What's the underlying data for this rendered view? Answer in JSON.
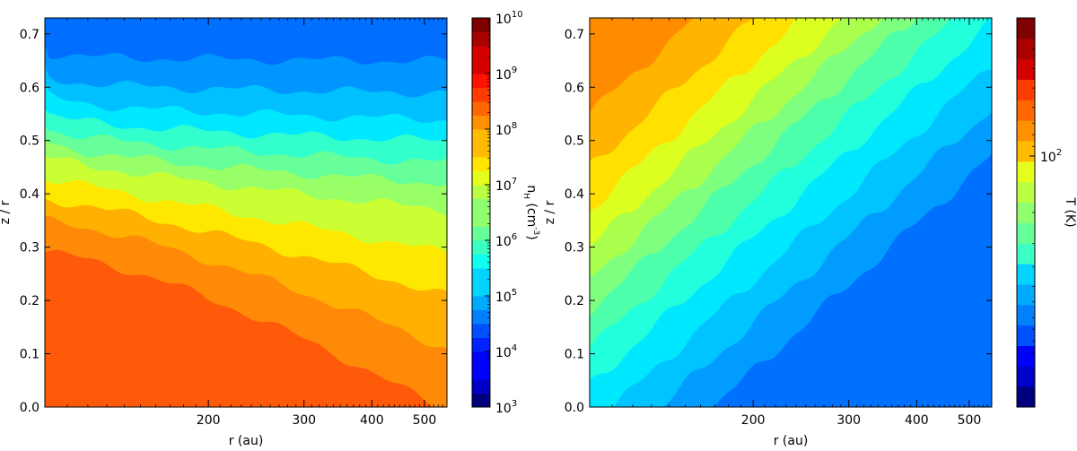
{
  "chart_data": [
    {
      "type": "heatmap",
      "subtype": "filled-contour",
      "xlabel": "r (au)",
      "ylabel": "z / r",
      "x_scale": "log",
      "x_range": [
        100,
        550
      ],
      "x_ticks": [
        200,
        300,
        400,
        500
      ],
      "x_tick_labels": [
        "200",
        "300",
        "400",
        "500"
      ],
      "y_range": [
        0,
        0.73
      ],
      "y_ticks": [
        "0.0",
        "0.1",
        "0.2",
        "0.3",
        "0.4",
        "0.5",
        "0.6",
        "0.7"
      ],
      "colorbar": {
        "label": "n_H (cm^-3)",
        "scale": "log",
        "range": [
          1000,
          10000000000
        ],
        "tick_labels": [
          {
            "base": "10",
            "exp": "3",
            "value": 1000
          },
          {
            "base": "10",
            "exp": "4",
            "value": 10000
          },
          {
            "base": "10",
            "exp": "5",
            "value": 100000
          },
          {
            "base": "10",
            "exp": "6",
            "value": 1000000
          },
          {
            "base": "10",
            "exp": "7",
            "value": 10000000
          },
          {
            "base": "10",
            "exp": "8",
            "value": 100000000
          },
          {
            "base": "10",
            "exp": "9",
            "value": 1000000000
          },
          {
            "base": "10",
            "exp": "10",
            "value": 10000000000
          }
        ]
      },
      "contour_boundaries_log10": [
        8.25,
        7.75,
        7.25,
        6.75,
        6.5,
        6.25,
        6.0,
        5.75,
        5.5,
        5.25,
        5.0
      ],
      "contour_colors": [
        "#ff5a0a",
        "#ff8a08",
        "#ffb000",
        "#ffe800",
        "#ccff33",
        "#99ff66",
        "#66ff99",
        "#33ffcc",
        "#00e8ff",
        "#00c0ff",
        "#0096ff",
        "#006eff"
      ]
    },
    {
      "type": "heatmap",
      "subtype": "filled-contour",
      "xlabel": "r (au)",
      "ylabel": "z / r",
      "x_scale": "log",
      "x_range": [
        100,
        550
      ],
      "x_ticks": [
        200,
        300,
        400,
        500
      ],
      "x_tick_labels": [
        "200",
        "300",
        "400",
        "500"
      ],
      "y_range": [
        0,
        0.73
      ],
      "y_ticks": [
        "0.0",
        "0.1",
        "0.2",
        "0.3",
        "0.4",
        "0.5",
        "0.6",
        "0.7"
      ],
      "colorbar": {
        "label": "T (K)",
        "scale": "log",
        "tick_labels": [
          {
            "base": "10",
            "exp": "2",
            "value": 100
          }
        ]
      },
      "contour_levels_K": [
        165,
        130,
        105,
        90,
        78,
        68,
        60,
        53,
        47,
        42,
        37
      ],
      "contour_colors": [
        "#ff8c00",
        "#ffb400",
        "#ffe000",
        "#ddff1f",
        "#aaff4d",
        "#7fff7f",
        "#4dffaa",
        "#22ffdd",
        "#00e8ff",
        "#00c4ff",
        "#009cff",
        "#0070ff"
      ]
    }
  ]
}
